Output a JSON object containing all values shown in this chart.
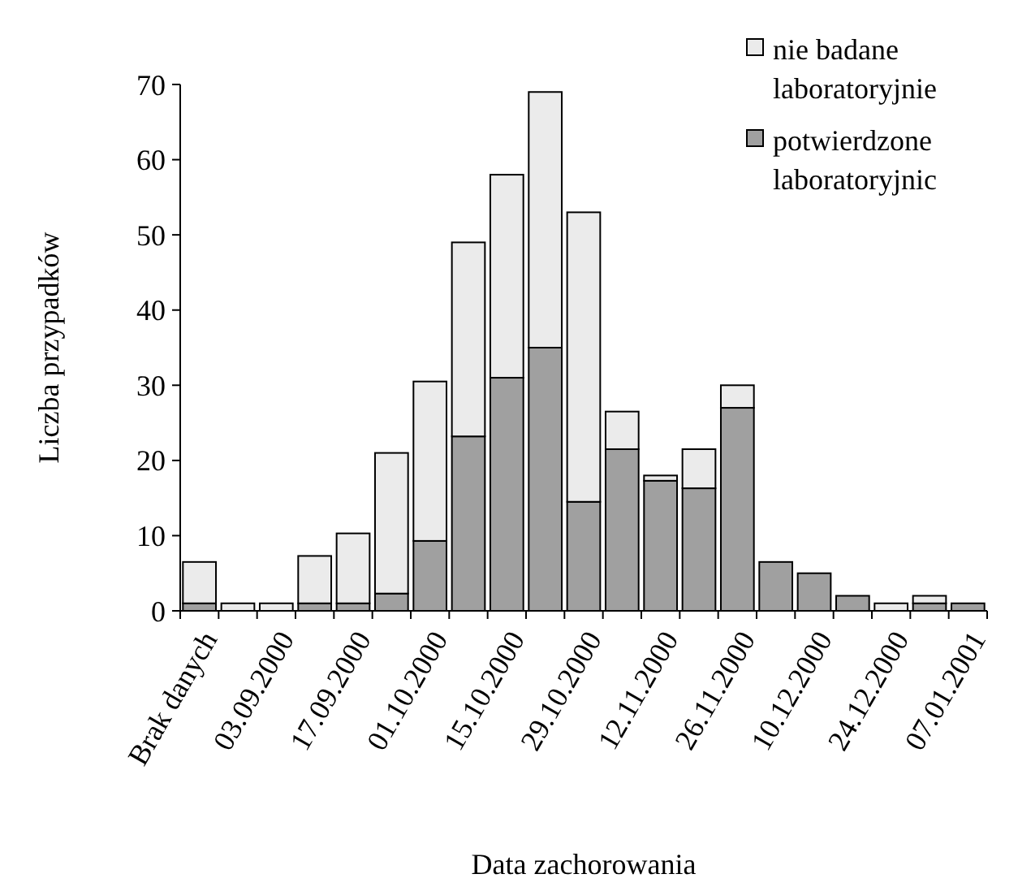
{
  "chart_data": {
    "type": "bar",
    "stacked": true,
    "xlabel": "Data zachorowania",
    "ylabel": "Liczba przypadków",
    "categories": [
      "Brak danych",
      null,
      "03.09.2000",
      null,
      "17.09.2000",
      null,
      "01.10.2000",
      null,
      "15.10.2000",
      null,
      "29.10.2000",
      null,
      "12.11.2000",
      null,
      "26.11.2000",
      null,
      "10.12.2000",
      null,
      "24.12.2000",
      null,
      "07.01.2001"
    ],
    "series": [
      {
        "name": "potwierdzone laboratoryjnic",
        "color": "#a0a0a0",
        "values": [
          1,
          0,
          0,
          1,
          1,
          2.3,
          9.3,
          23.2,
          31,
          35,
          14.5,
          21.5,
          17.3,
          16.3,
          27,
          6.5,
          5,
          2,
          0,
          1,
          1
        ]
      },
      {
        "name": "nie badane laboratoryjnie",
        "color": "#ebebeb",
        "values": [
          5.5,
          1,
          1,
          6.3,
          9.3,
          18.7,
          21.2,
          25.8,
          27,
          34,
          38.5,
          5,
          0.7,
          5.2,
          3,
          0,
          0,
          0,
          1,
          1,
          0
        ]
      }
    ],
    "ylim": [
      0,
      70
    ],
    "yticks": [
      0,
      10,
      20,
      30,
      40,
      50,
      60,
      70
    ],
    "legend": "top right",
    "grid": false
  }
}
